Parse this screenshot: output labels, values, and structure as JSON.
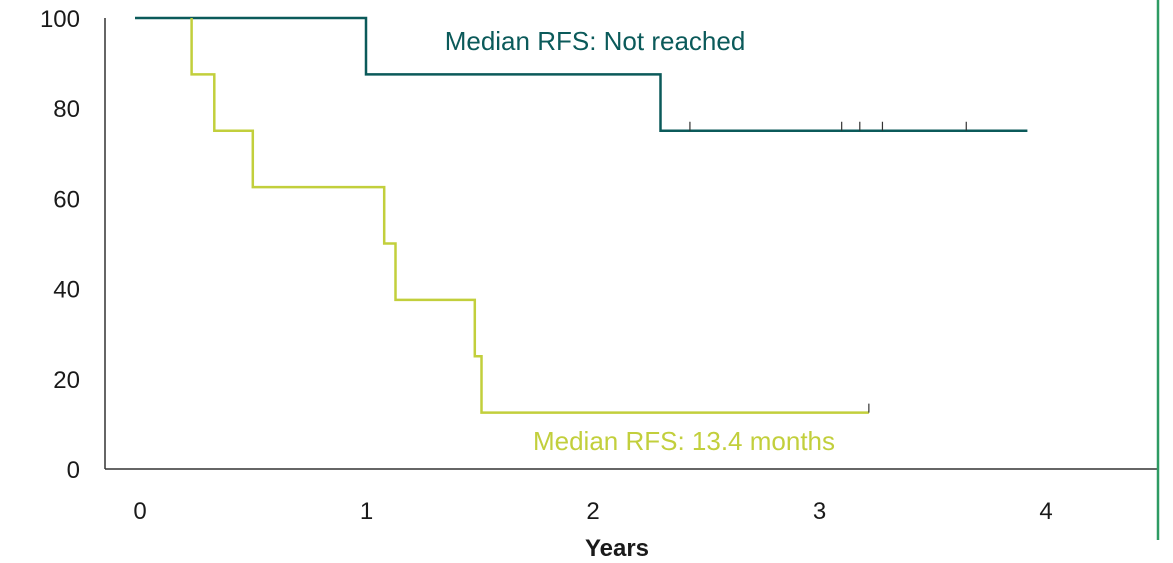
{
  "chart_data": {
    "type": "line",
    "xlabel": "Years",
    "ylabel": "",
    "xlim": [
      0,
      4
    ],
    "ylim": [
      0,
      100
    ],
    "xticks": [
      0,
      1,
      2,
      3,
      4
    ],
    "yticks": [
      0,
      20,
      40,
      60,
      80,
      100
    ],
    "grid": false,
    "series": [
      {
        "color": "#0b5a5a",
        "step_points": [
          [
            0,
            100
          ],
          [
            1.02,
            100
          ],
          [
            1.02,
            87.5
          ],
          [
            2.32,
            87.5
          ],
          [
            2.32,
            75
          ],
          [
            3.94,
            75
          ]
        ],
        "censor_ticks": [
          [
            2.45,
            75
          ],
          [
            3.12,
            75
          ],
          [
            3.2,
            75
          ],
          [
            3.3,
            75
          ],
          [
            3.67,
            75
          ]
        ],
        "annotation": "Median RFS: Not reached"
      },
      {
        "color": "#c2cf3c",
        "step_points": [
          [
            0.25,
            100
          ],
          [
            0.25,
            87.5
          ],
          [
            0.35,
            87.5
          ],
          [
            0.35,
            75
          ],
          [
            0.52,
            75
          ],
          [
            0.52,
            62.5
          ],
          [
            1.1,
            62.5
          ],
          [
            1.1,
            50
          ],
          [
            1.15,
            50
          ],
          [
            1.15,
            37.5
          ],
          [
            1.5,
            37.5
          ],
          [
            1.5,
            25
          ],
          [
            1.53,
            25
          ],
          [
            1.53,
            12.5
          ],
          [
            3.24,
            12.5
          ]
        ],
        "censor_ticks": [
          [
            3.24,
            12.5
          ]
        ],
        "annotation": "Median RFS: 13.4 months"
      }
    ]
  }
}
